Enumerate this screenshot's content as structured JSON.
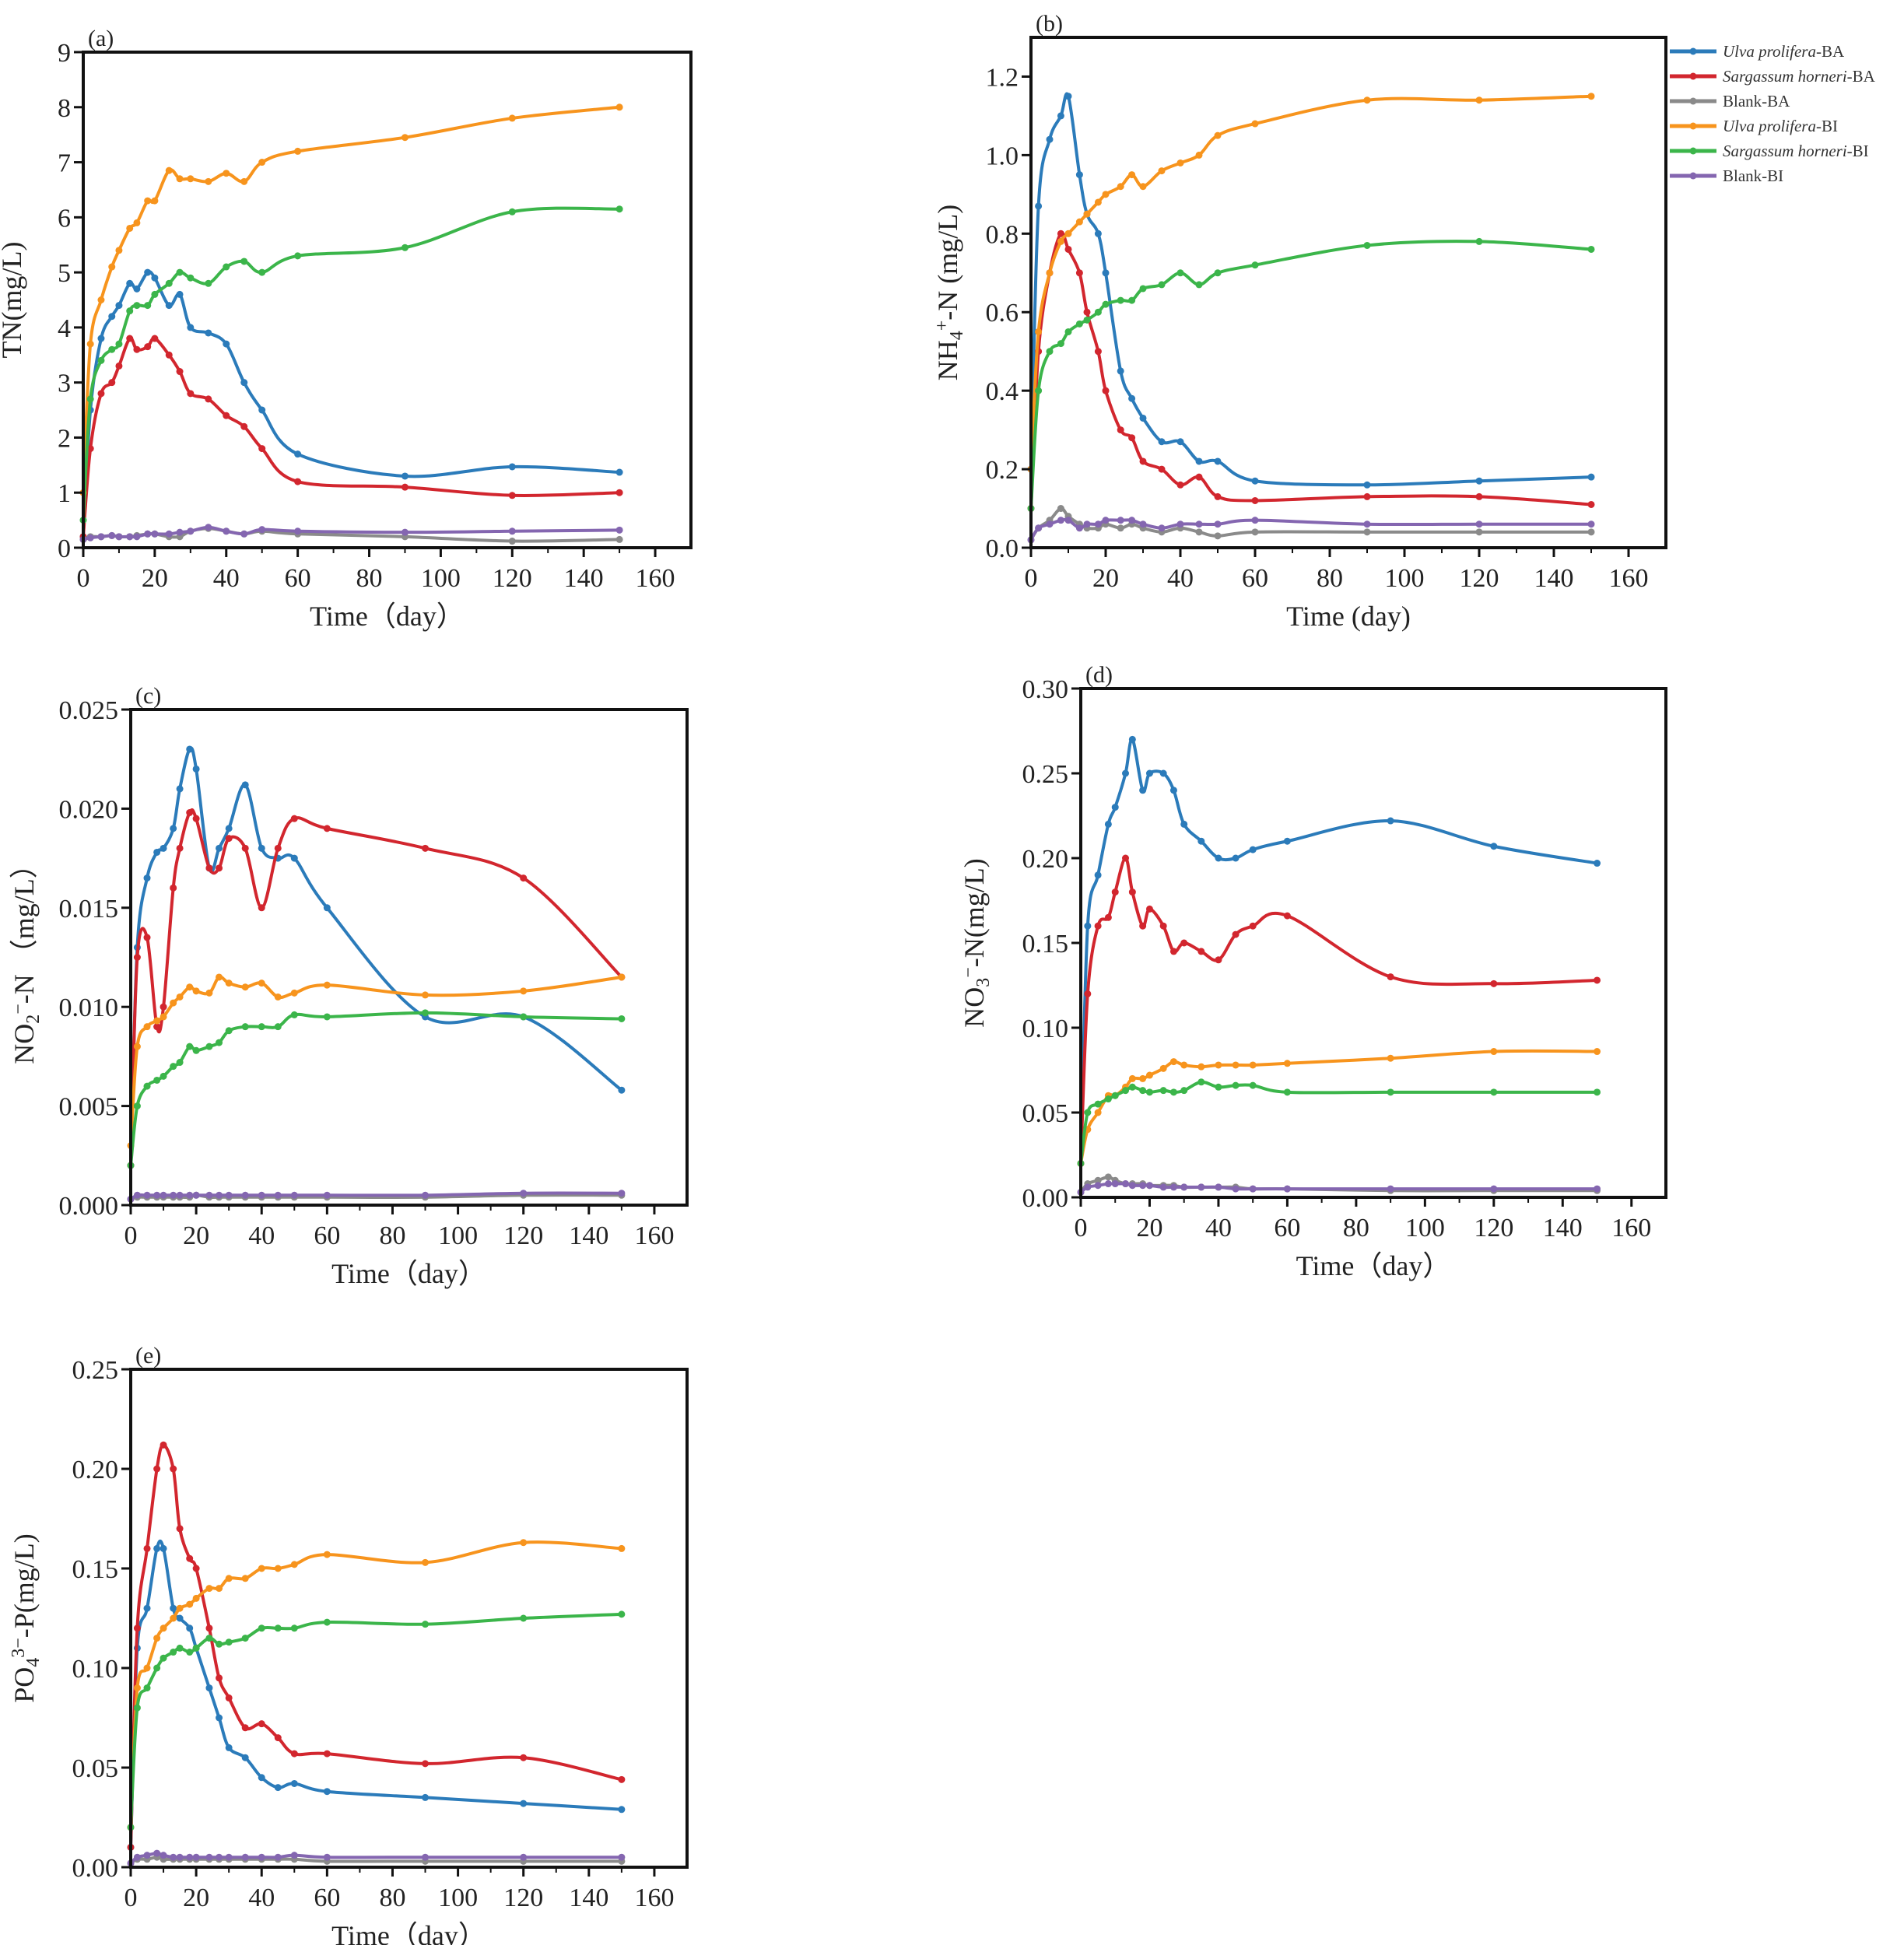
{
  "colors": {
    "Ulva prolifera-BA": "#2b7bba",
    "Sargassum horneri-BA": "#d2262e",
    "Blank-BA": "#8a8a8a",
    "Ulva prolifera-BI": "#f7941d",
    "Sargassum horneri-BI": "#3bb54a",
    "Blank-BI": "#8466b0"
  },
  "legend": {
    "placement": "right of panel (b)",
    "entries": [
      "Ulva prolifera-BA",
      "Sargassum horneri-BA",
      "Blank-BA",
      "Ulva prolifera-BI",
      "Sargassum horneri-BI",
      "Blank-BI"
    ]
  },
  "chart_data": [
    {
      "panel": "(a)",
      "type": "line",
      "xlabel": "Time（day）",
      "ylabel": [
        [
          "TN(mg/L)",
          ""
        ]
      ],
      "xlim": [
        0,
        170
      ],
      "ylim": [
        0,
        9
      ],
      "xticks": [
        0,
        20,
        40,
        60,
        80,
        100,
        120,
        140,
        160
      ],
      "yticks": [
        0,
        1,
        2,
        3,
        4,
        5,
        6,
        7,
        8,
        9
      ],
      "ytick_labels": [
        "0",
        "1",
        "2",
        "3",
        "4",
        "5",
        "6",
        "7",
        "8",
        "9"
      ],
      "x": [
        0,
        2,
        5,
        8,
        10,
        13,
        15,
        18,
        20,
        24,
        27,
        30,
        35,
        40,
        45,
        50,
        60,
        90,
        120,
        150
      ],
      "series": [
        {
          "name": "Ulva prolifera-BA",
          "values": [
            0.2,
            2.5,
            3.8,
            4.2,
            4.4,
            4.8,
            4.7,
            5.0,
            4.9,
            4.4,
            4.6,
            4.0,
            3.9,
            3.7,
            3.0,
            2.5,
            1.7,
            1.3,
            1.47,
            1.37
          ]
        },
        {
          "name": "Sargassum horneri-BA",
          "values": [
            0.2,
            1.8,
            2.8,
            3.0,
            3.3,
            3.8,
            3.6,
            3.65,
            3.8,
            3.5,
            3.2,
            2.8,
            2.7,
            2.4,
            2.2,
            1.8,
            1.2,
            1.1,
            0.95,
            1.0
          ]
        },
        {
          "name": "Blank-BA",
          "values": [
            0.15,
            0.2,
            0.2,
            0.22,
            0.2,
            0.2,
            0.22,
            0.25,
            0.25,
            0.2,
            0.2,
            0.3,
            0.35,
            0.3,
            0.25,
            0.3,
            0.25,
            0.2,
            0.12,
            0.15
          ]
        },
        {
          "name": "Ulva prolifera-BI",
          "values": [
            1.0,
            3.7,
            4.5,
            5.1,
            5.4,
            5.8,
            5.9,
            6.3,
            6.3,
            6.85,
            6.7,
            6.7,
            6.65,
            6.8,
            6.65,
            7.0,
            7.2,
            7.45,
            7.8,
            8.0
          ]
        },
        {
          "name": "Sargassum horneri-BI",
          "values": [
            0.5,
            2.7,
            3.4,
            3.6,
            3.7,
            4.3,
            4.4,
            4.4,
            4.6,
            4.8,
            5.0,
            4.9,
            4.8,
            5.1,
            5.2,
            5.0,
            5.3,
            5.45,
            6.1,
            6.15
          ]
        },
        {
          "name": "Blank-BI",
          "values": [
            0.15,
            0.18,
            0.2,
            0.22,
            0.2,
            0.2,
            0.2,
            0.25,
            0.25,
            0.25,
            0.28,
            0.3,
            0.37,
            0.3,
            0.25,
            0.33,
            0.3,
            0.28,
            0.3,
            0.32
          ]
        }
      ]
    },
    {
      "panel": "(b)",
      "type": "line",
      "xlabel": "Time (day)",
      "ylabel": [
        [
          "NH",
          ""
        ],
        [
          "4",
          "sub"
        ],
        [
          "+",
          "sup"
        ],
        [
          "-N (mg/L)",
          ""
        ]
      ],
      "xlim": [
        0,
        170
      ],
      "ylim": [
        0,
        1.3
      ],
      "xticks": [
        0,
        20,
        40,
        60,
        80,
        100,
        120,
        140,
        160
      ],
      "yticks": [
        0,
        0.2,
        0.4,
        0.6,
        0.8,
        1.0,
        1.2
      ],
      "ytick_labels": [
        "0.0",
        "0.2",
        "0.4",
        "0.6",
        "0.8",
        "1.0",
        "1.2"
      ],
      "x": [
        0,
        2,
        5,
        8,
        10,
        13,
        15,
        18,
        20,
        24,
        27,
        30,
        35,
        40,
        45,
        50,
        60,
        90,
        120,
        150
      ],
      "series": [
        {
          "name": "Ulva prolifera-BA",
          "values": [
            0.2,
            0.87,
            1.04,
            1.1,
            1.15,
            0.95,
            0.85,
            0.8,
            0.7,
            0.45,
            0.38,
            0.33,
            0.27,
            0.27,
            0.22,
            0.22,
            0.17,
            0.16,
            0.17,
            0.18
          ]
        },
        {
          "name": "Sargassum horneri-BA",
          "values": [
            0.1,
            0.5,
            0.7,
            0.8,
            0.76,
            0.7,
            0.6,
            0.5,
            0.4,
            0.3,
            0.28,
            0.22,
            0.2,
            0.16,
            0.18,
            0.13,
            0.12,
            0.13,
            0.13,
            0.11
          ]
        },
        {
          "name": "Blank-BA",
          "values": [
            0.02,
            0.05,
            0.07,
            0.1,
            0.08,
            0.06,
            0.05,
            0.05,
            0.06,
            0.05,
            0.06,
            0.05,
            0.04,
            0.05,
            0.04,
            0.03,
            0.04,
            0.04,
            0.04,
            0.04
          ]
        },
        {
          "name": "Ulva prolifera-BI",
          "values": [
            0.2,
            0.55,
            0.7,
            0.78,
            0.8,
            0.83,
            0.85,
            0.88,
            0.9,
            0.92,
            0.95,
            0.92,
            0.96,
            0.98,
            1.0,
            1.05,
            1.08,
            1.14,
            1.14,
            1.15
          ]
        },
        {
          "name": "Sargassum horneri-BI",
          "values": [
            0.1,
            0.4,
            0.5,
            0.52,
            0.55,
            0.57,
            0.58,
            0.6,
            0.62,
            0.63,
            0.63,
            0.66,
            0.67,
            0.7,
            0.67,
            0.7,
            0.72,
            0.77,
            0.78,
            0.76
          ]
        },
        {
          "name": "Blank-BI",
          "values": [
            0.02,
            0.05,
            0.06,
            0.07,
            0.07,
            0.05,
            0.06,
            0.06,
            0.07,
            0.07,
            0.07,
            0.06,
            0.05,
            0.06,
            0.06,
            0.06,
            0.07,
            0.06,
            0.06,
            0.06
          ]
        }
      ]
    },
    {
      "panel": "(c)",
      "type": "line",
      "xlabel": "Time（day）",
      "ylabel": [
        [
          "NO",
          ""
        ],
        [
          "2",
          "sub"
        ],
        [
          "−",
          "sup"
        ],
        [
          "-N （mg/L）",
          ""
        ]
      ],
      "xlim": [
        0,
        170
      ],
      "ylim": [
        0,
        0.025
      ],
      "xticks": [
        0,
        20,
        40,
        60,
        80,
        100,
        120,
        140,
        160
      ],
      "yticks": [
        0,
        0.005,
        0.01,
        0.015,
        0.02,
        0.025
      ],
      "ytick_labels": [
        "0.000",
        "0.005",
        "0.010",
        "0.015",
        "0.020",
        "0.025"
      ],
      "x": [
        0,
        2,
        5,
        8,
        10,
        13,
        15,
        18,
        20,
        24,
        27,
        30,
        35,
        40,
        45,
        50,
        60,
        90,
        120,
        150
      ],
      "series": [
        {
          "name": "Ulva prolifera-BA",
          "values": [
            0.002,
            0.013,
            0.0165,
            0.0178,
            0.018,
            0.019,
            0.021,
            0.023,
            0.022,
            0.017,
            0.018,
            0.019,
            0.0212,
            0.018,
            0.0175,
            0.0175,
            0.015,
            0.0095,
            0.0095,
            0.0058
          ]
        },
        {
          "name": "Sargassum horneri-BA",
          "values": [
            0.002,
            0.0125,
            0.0135,
            0.009,
            0.01,
            0.016,
            0.018,
            0.0198,
            0.0195,
            0.017,
            0.017,
            0.0185,
            0.018,
            0.015,
            0.018,
            0.0195,
            0.019,
            0.018,
            0.0165,
            0.0115
          ]
        },
        {
          "name": "Blank-BA",
          "values": [
            0.0003,
            0.0004,
            0.0004,
            0.0004,
            0.0004,
            0.0004,
            0.0004,
            0.0004,
            0.0005,
            0.0004,
            0.0004,
            0.0004,
            0.0004,
            0.0004,
            0.0004,
            0.0004,
            0.0004,
            0.0004,
            0.0005,
            0.0005
          ]
        },
        {
          "name": "Ulva prolifera-BI",
          "values": [
            0.003,
            0.008,
            0.009,
            0.0093,
            0.0095,
            0.0102,
            0.0105,
            0.011,
            0.0108,
            0.0107,
            0.0115,
            0.0112,
            0.011,
            0.0112,
            0.0105,
            0.0107,
            0.0111,
            0.0106,
            0.0108,
            0.0115
          ]
        },
        {
          "name": "Sargassum horneri-BI",
          "values": [
            0.002,
            0.005,
            0.006,
            0.0063,
            0.0065,
            0.007,
            0.0072,
            0.008,
            0.0078,
            0.008,
            0.0082,
            0.0088,
            0.009,
            0.009,
            0.009,
            0.0096,
            0.0095,
            0.0097,
            0.0095,
            0.0094
          ]
        },
        {
          "name": "Blank-BI",
          "values": [
            0.0003,
            0.0005,
            0.0005,
            0.0005,
            0.0005,
            0.0005,
            0.0005,
            0.0005,
            0.0005,
            0.0005,
            0.0005,
            0.0005,
            0.0005,
            0.0005,
            0.0005,
            0.0005,
            0.0005,
            0.0005,
            0.0006,
            0.0006
          ]
        }
      ]
    },
    {
      "panel": "(d)",
      "type": "line",
      "xlabel": "Time（day）",
      "ylabel": [
        [
          "NO",
          ""
        ],
        [
          "3",
          "sub"
        ],
        [
          "−",
          "sup"
        ],
        [
          "-N(mg/L)",
          ""
        ]
      ],
      "xlim": [
        0,
        170
      ],
      "ylim": [
        0,
        0.3
      ],
      "xticks": [
        0,
        20,
        40,
        60,
        80,
        100,
        120,
        140,
        160
      ],
      "yticks": [
        0,
        0.05,
        0.1,
        0.15,
        0.2,
        0.25,
        0.3
      ],
      "ytick_labels": [
        "0.00",
        "0.05",
        "0.10",
        "0.15",
        "0.20",
        "0.25",
        "0.30"
      ],
      "x": [
        0,
        2,
        5,
        8,
        10,
        13,
        15,
        18,
        20,
        24,
        27,
        30,
        35,
        40,
        45,
        50,
        60,
        90,
        120,
        150
      ],
      "series": [
        {
          "name": "Ulva prolifera-BA",
          "values": [
            0.02,
            0.16,
            0.19,
            0.22,
            0.23,
            0.25,
            0.27,
            0.24,
            0.25,
            0.25,
            0.24,
            0.22,
            0.21,
            0.2,
            0.2,
            0.205,
            0.21,
            0.222,
            0.207,
            0.197
          ]
        },
        {
          "name": "Sargassum horneri-BA",
          "values": [
            0.02,
            0.12,
            0.16,
            0.165,
            0.18,
            0.2,
            0.18,
            0.16,
            0.17,
            0.16,
            0.145,
            0.15,
            0.145,
            0.14,
            0.155,
            0.16,
            0.166,
            0.13,
            0.126,
            0.128
          ]
        },
        {
          "name": "Blank-BA",
          "values": [
            0.003,
            0.008,
            0.01,
            0.012,
            0.01,
            0.008,
            0.008,
            0.008,
            0.007,
            0.007,
            0.007,
            0.006,
            0.006,
            0.006,
            0.006,
            0.005,
            0.005,
            0.004,
            0.004,
            0.004
          ]
        },
        {
          "name": "Ulva prolifera-BI",
          "values": [
            0.02,
            0.04,
            0.05,
            0.06,
            0.06,
            0.065,
            0.07,
            0.07,
            0.072,
            0.076,
            0.08,
            0.078,
            0.077,
            0.078,
            0.078,
            0.078,
            0.079,
            0.082,
            0.086,
            0.086
          ]
        },
        {
          "name": "Sargassum horneri-BI",
          "values": [
            0.02,
            0.05,
            0.055,
            0.058,
            0.06,
            0.063,
            0.065,
            0.063,
            0.062,
            0.063,
            0.062,
            0.063,
            0.068,
            0.065,
            0.066,
            0.066,
            0.062,
            0.062,
            0.062,
            0.062
          ]
        },
        {
          "name": "Blank-BI",
          "values": [
            0.003,
            0.006,
            0.007,
            0.008,
            0.008,
            0.008,
            0.007,
            0.007,
            0.007,
            0.006,
            0.006,
            0.006,
            0.006,
            0.006,
            0.005,
            0.005,
            0.005,
            0.005,
            0.005,
            0.005
          ]
        }
      ]
    },
    {
      "panel": "(e)",
      "type": "line",
      "xlabel": "Time（day）",
      "ylabel": [
        [
          "PO",
          ""
        ],
        [
          "4",
          "sub"
        ],
        [
          "3−",
          "sup"
        ],
        [
          "-P(mg/L)",
          ""
        ]
      ],
      "xlim": [
        0,
        170
      ],
      "ylim": [
        0,
        0.25
      ],
      "xticks": [
        0,
        20,
        40,
        60,
        80,
        100,
        120,
        140,
        160
      ],
      "yticks": [
        0,
        0.05,
        0.1,
        0.15,
        0.2,
        0.25
      ],
      "ytick_labels": [
        "0.00",
        "0.05",
        "0.10",
        "0.15",
        "0.20",
        "0.25"
      ],
      "x": [
        0,
        2,
        5,
        8,
        10,
        13,
        15,
        18,
        20,
        24,
        27,
        30,
        35,
        40,
        45,
        50,
        60,
        90,
        120,
        150
      ],
      "series": [
        {
          "name": "Ulva prolifera-BA",
          "values": [
            0.01,
            0.11,
            0.13,
            0.16,
            0.16,
            0.13,
            0.125,
            0.12,
            0.11,
            0.09,
            0.075,
            0.06,
            0.055,
            0.045,
            0.04,
            0.042,
            0.038,
            0.035,
            0.032,
            0.029
          ]
        },
        {
          "name": "Sargassum horneri-BA",
          "values": [
            0.01,
            0.12,
            0.16,
            0.2,
            0.212,
            0.2,
            0.17,
            0.155,
            0.15,
            0.12,
            0.095,
            0.085,
            0.07,
            0.072,
            0.065,
            0.057,
            0.057,
            0.052,
            0.055,
            0.044
          ]
        },
        {
          "name": "Blank-BA",
          "values": [
            0.002,
            0.004,
            0.004,
            0.005,
            0.004,
            0.004,
            0.004,
            0.004,
            0.004,
            0.004,
            0.004,
            0.004,
            0.004,
            0.004,
            0.004,
            0.004,
            0.003,
            0.003,
            0.003,
            0.003
          ]
        },
        {
          "name": "Ulva prolifera-BI",
          "values": [
            0.02,
            0.09,
            0.1,
            0.115,
            0.12,
            0.125,
            0.13,
            0.132,
            0.135,
            0.14,
            0.14,
            0.145,
            0.145,
            0.15,
            0.15,
            0.152,
            0.157,
            0.153,
            0.163,
            0.16
          ]
        },
        {
          "name": "Sargassum horneri-BI",
          "values": [
            0.02,
            0.08,
            0.09,
            0.1,
            0.105,
            0.108,
            0.11,
            0.108,
            0.11,
            0.115,
            0.112,
            0.113,
            0.115,
            0.12,
            0.12,
            0.12,
            0.123,
            0.122,
            0.125,
            0.127
          ]
        },
        {
          "name": "Blank-BI",
          "values": [
            0.002,
            0.005,
            0.006,
            0.007,
            0.006,
            0.005,
            0.005,
            0.005,
            0.005,
            0.005,
            0.005,
            0.005,
            0.005,
            0.005,
            0.005,
            0.006,
            0.005,
            0.005,
            0.005,
            0.005
          ]
        }
      ]
    }
  ]
}
